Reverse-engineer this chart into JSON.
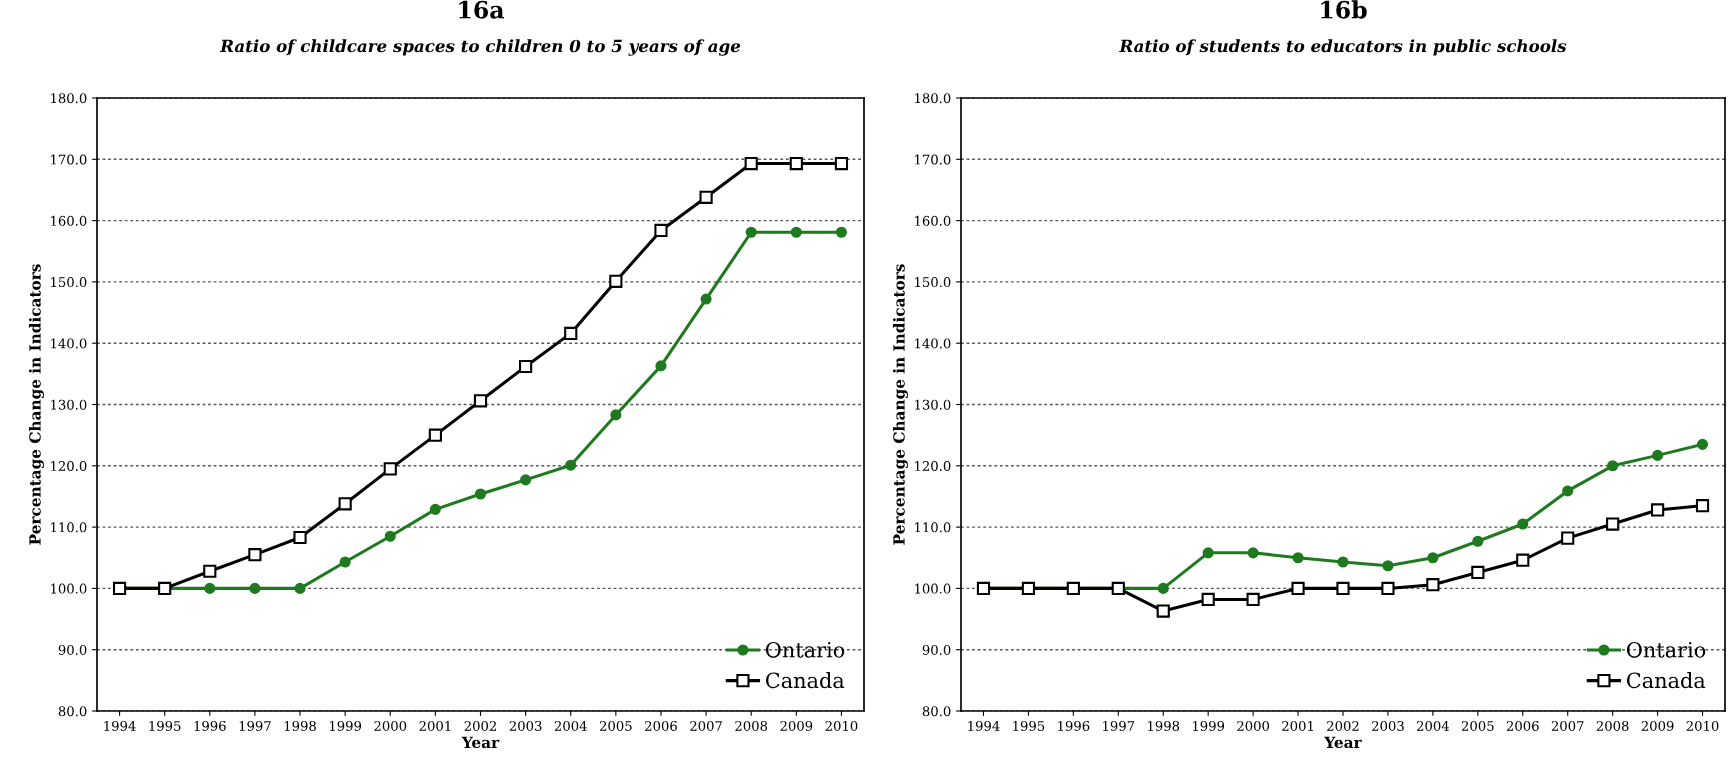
{
  "chart_data": [
    {
      "type": "line",
      "title": "16a",
      "subtitle": "Ratio of childcare spaces to children 0 to 5 years of age",
      "xlabel": "Year",
      "ylabel": "Percentage Change in Indicators",
      "categories": [
        "1994",
        "1995",
        "1996",
        "1997",
        "1998",
        "1999",
        "2000",
        "2001",
        "2002",
        "2003",
        "2004",
        "2005",
        "2006",
        "2007",
        "2008",
        "2009",
        "2010"
      ],
      "series": [
        {
          "name": "Ontario",
          "color": "#1f7a1f",
          "marker": "circle",
          "values": [
            100,
            100,
            100,
            100,
            100,
            104.3,
            108.5,
            112.9,
            115.4,
            117.7,
            120.1,
            128.3,
            136.3,
            147.2,
            158.1,
            158.1,
            158.1
          ]
        },
        {
          "name": "Canada",
          "color": "#000000",
          "marker": "square",
          "values": [
            100,
            100,
            102.8,
            105.5,
            108.3,
            113.8,
            119.5,
            125.0,
            130.6,
            136.2,
            141.6,
            150.1,
            158.4,
            163.8,
            169.3,
            169.3,
            169.3
          ]
        }
      ],
      "ylim": [
        80,
        180
      ],
      "yticks": [
        {
          "value": 80,
          "label": "80.0"
        },
        {
          "value": 90,
          "label": "90.0"
        },
        {
          "value": 100,
          "label": "100.0"
        },
        {
          "value": 110,
          "label": "110.0"
        },
        {
          "value": 120,
          "label": "120.0"
        },
        {
          "value": 130,
          "label": "130.0"
        },
        {
          "value": 140,
          "label": "140.0"
        },
        {
          "value": 150,
          "label": "150.0"
        },
        {
          "value": 160,
          "label": "160.0"
        },
        {
          "value": 170,
          "label": "170.0"
        },
        {
          "value": 180,
          "label": "180.0"
        }
      ],
      "grid": "y",
      "legend": "bottom right",
      "line_style": "solid"
    },
    {
      "type": "line",
      "title": "16b",
      "subtitle": "Ratio of students to educators in public schools",
      "xlabel": "Year",
      "ylabel": "Percentage Change in Indicators",
      "categories": [
        "1994",
        "1995",
        "1996",
        "1997",
        "1998",
        "1999",
        "2000",
        "2001",
        "2002",
        "2003",
        "2004",
        "2005",
        "2006",
        "2007",
        "2008",
        "2009",
        "2010"
      ],
      "series": [
        {
          "name": "Ontario",
          "color": "#1f7a1f",
          "marker": "circle",
          "values": [
            100,
            100,
            100,
            100,
            100,
            105.8,
            105.8,
            105.0,
            104.3,
            103.7,
            105.0,
            107.7,
            110.5,
            115.9,
            120.0,
            121.7,
            123.5
          ]
        },
        {
          "name": "Canada",
          "color": "#000000",
          "marker": "square",
          "values": [
            100,
            100,
            100,
            100,
            96.3,
            98.2,
            98.2,
            100,
            100,
            100,
            100.6,
            102.6,
            104.6,
            108.2,
            110.5,
            112.8,
            113.5
          ]
        }
      ],
      "ylim": [
        80,
        180
      ],
      "yticks": [
        {
          "value": 80,
          "label": "80.0"
        },
        {
          "value": 90,
          "label": "90.0"
        },
        {
          "value": 100,
          "label": "100.0"
        },
        {
          "value": 110,
          "label": "110.0"
        },
        {
          "value": 120,
          "label": "120.0"
        },
        {
          "value": 130,
          "label": "130.0"
        },
        {
          "value": 140,
          "label": "140.0"
        },
        {
          "value": 150,
          "label": "150.0"
        },
        {
          "value": 160,
          "label": "160.0"
        },
        {
          "value": 170,
          "label": "170.0"
        },
        {
          "value": 180,
          "label": "180.0"
        }
      ],
      "grid": "y",
      "legend": "bottom right",
      "line_style": "solid"
    }
  ]
}
